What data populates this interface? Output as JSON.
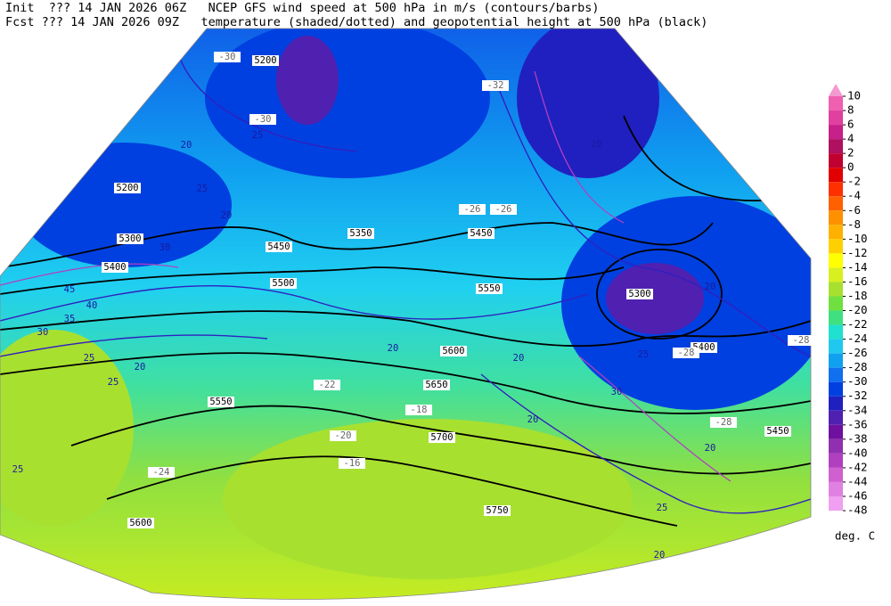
{
  "header": {
    "lines": [
      "Init  ??? 14 JAN 2026 06Z   NCEP GFS wind speed at 500 hPa in m/s (contours/barbs)",
      "Fcst ??? 14 JAN 2026 09Z   temperature (shaded/dotted) and geopotential height at 500 hPa (black)"
    ]
  },
  "map": {
    "height_labels": [
      "5200",
      "5200",
      "5300",
      "5350",
      "5400",
      "5450",
      "5500",
      "5550",
      "5600",
      "5650",
      "5700",
      "5750",
      "5600",
      "5550",
      "5450",
      "5400",
      "5300",
      "5450"
    ],
    "temperature_labels": [
      "-26",
      "-28",
      "-30",
      "-30",
      "-22",
      "-20",
      "-24",
      "-28",
      "-26",
      "-18",
      "-16",
      "-28",
      "-32"
    ],
    "wind_labels": [
      "20",
      "25",
      "20",
      "20",
      "25",
      "20",
      "20",
      "25",
      "20",
      "25",
      "30",
      "35",
      "40",
      "45",
      "25",
      "20",
      "25",
      "20",
      "20",
      "30",
      "25",
      "30",
      "20"
    ]
  },
  "colorbar": {
    "ticks": [
      10,
      8,
      6,
      4,
      2,
      0,
      -2,
      -4,
      -6,
      -8,
      -10,
      -12,
      -14,
      -16,
      -18,
      -20,
      -22,
      -24,
      -26,
      -28,
      -30,
      -32,
      -34,
      -36,
      -38,
      -40,
      -42,
      -44,
      -46,
      -48
    ],
    "colors": [
      "#f49ad0",
      "#f060b0",
      "#e040a0",
      "#c8208a",
      "#b01060",
      "#c00030",
      "#e00000",
      "#ff3000",
      "#ff6000",
      "#ff9000",
      "#ffb000",
      "#ffd000",
      "#ffff00",
      "#d8f020",
      "#a8e030",
      "#70e040",
      "#40e080",
      "#20e0d0",
      "#20c8f0",
      "#10a0f0",
      "#1070f0",
      "#0040e0",
      "#2020c0",
      "#5020b0",
      "#7010a0",
      "#9030b0",
      "#b040c0",
      "#d060d0",
      "#e080e0",
      "#f0a0f0"
    ],
    "unit": "deg. C"
  }
}
